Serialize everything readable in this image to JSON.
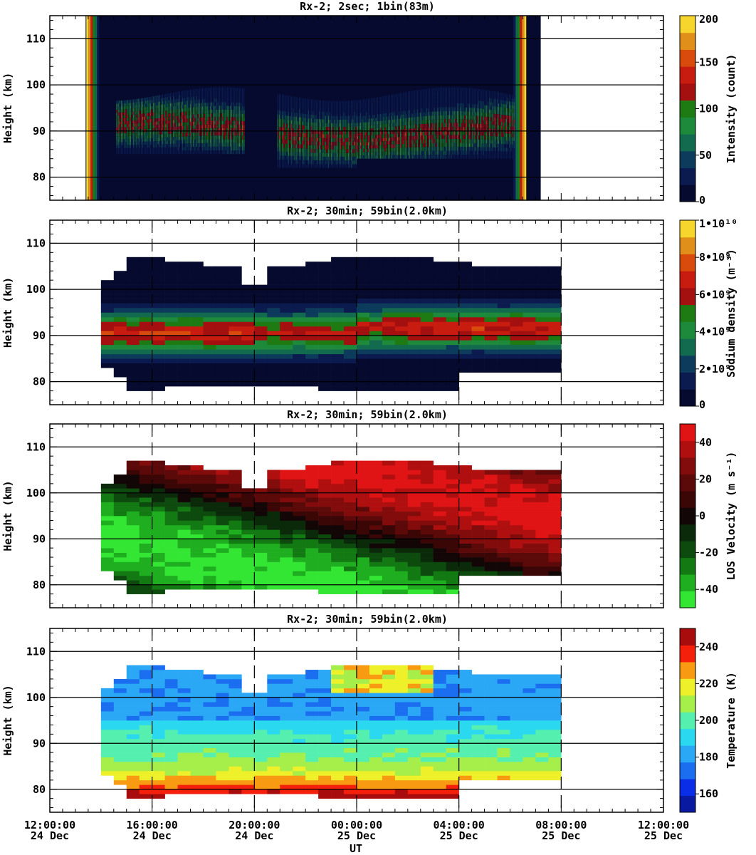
{
  "figure": {
    "x_axis_title": "UT",
    "x_ticks": [
      {
        "time": "12:00:00",
        "date": "24 Dec"
      },
      {
        "time": "16:00:00",
        "date": "24 Dec"
      },
      {
        "time": "20:00:00",
        "date": "24 Dec"
      },
      {
        "time": "00:00:00",
        "date": "25 Dec"
      },
      {
        "time": "04:00:00",
        "date": "25 Dec"
      },
      {
        "time": "08:00:00",
        "date": "25 Dec"
      },
      {
        "time": "12:00:00",
        "date": "25 Dec"
      }
    ],
    "y_ticks": [
      "80",
      "90",
      "100",
      "110"
    ]
  },
  "chart_data": [
    {
      "type": "heatmap",
      "title": "Rx-2;  2sec; 1bin(83m)",
      "xlabel": "UT",
      "ylabel": "Height (km)",
      "ylim": [
        75,
        115
      ],
      "x_range_hours_ut": [
        "24 Dec 12:00:00",
        "25 Dec 12:00:00"
      ],
      "data_extent": [
        "24 Dec 13:25",
        "25 Dec 09:10"
      ],
      "colorbar": {
        "label": "Intensity (count)",
        "ticks": [
          "0",
          "50",
          "100",
          "150",
          "200"
        ],
        "range": [
          0,
          200
        ],
        "colors": [
          "#050a2e",
          "#0b1a4f",
          "#0d3b5c",
          "#126b4f",
          "#1c8a3a",
          "#1e7a12",
          "#a40f0f",
          "#c81c10",
          "#d94b0d",
          "#e0901a",
          "#f6d52c"
        ]
      },
      "features": "bright bands at the start and end of the record; sodium layer between ~82 and ~98 km"
    },
    {
      "type": "heatmap",
      "title": "Rx-2; 30min; 59bin(2.0km)",
      "xlabel": "UT",
      "ylabel": "Height (km)",
      "ylim": [
        75,
        115
      ],
      "x_range_hours_ut": [
        "24 Dec 12:00:00",
        "25 Dec 12:00:00"
      ],
      "data_extent": [
        "24 Dec 14:00",
        "25 Dec 08:00"
      ],
      "colorbar": {
        "label": "Sodium density (m^-3)",
        "ticks": [
          "0",
          "2•10⁹",
          "4•10⁹",
          "6•10⁹",
          "8•10⁹",
          "1•10¹⁰"
        ],
        "range": [
          0,
          10000000000
        ],
        "colors": [
          "#050a2e",
          "#0b1a4f",
          "#0d3b5c",
          "#126b4f",
          "#1c8a3a",
          "#1e7a12",
          "#a40f0f",
          "#c81c10",
          "#d94b0d",
          "#e0901a",
          "#f6d52c"
        ]
      },
      "features": "layer peak near 90 km, max density ~6-7x10^9 m^-3"
    },
    {
      "type": "heatmap",
      "title": "Rx-2; 30min; 59bin(2.0km)",
      "xlabel": "UT",
      "ylabel": "Height (km)",
      "ylim": [
        75,
        115
      ],
      "x_range_hours_ut": [
        "24 Dec 12:00:00",
        "25 Dec 12:00:00"
      ],
      "data_extent": [
        "24 Dec 14:00",
        "25 Dec 08:00"
      ],
      "colorbar": {
        "label": "LOS Velocity (m s^-1)",
        "ticks": [
          "-40",
          "-20",
          "0",
          "20",
          "40"
        ],
        "range": [
          -50,
          50
        ],
        "colors": [
          "#33e633",
          "#1fae1f",
          "#137a13",
          "#0d4a0d",
          "#0a2a0a",
          "#120606",
          "#3a0606",
          "#5c0909",
          "#820c0c",
          "#b00f0f",
          "#e01414"
        ]
      },
      "features": "downward-progressing tilted phase fronts alternating red (positive) and green (negative)"
    },
    {
      "type": "heatmap",
      "title": "Rx-2; 30min; 59bin(2.0km)",
      "xlabel": "UT",
      "ylabel": "Height (km)",
      "ylim": [
        75,
        115
      ],
      "x_range_hours_ut": [
        "24 Dec 12:00:00",
        "25 Dec 12:00:00"
      ],
      "data_extent": [
        "24 Dec 14:00",
        "25 Dec 08:00"
      ],
      "colorbar": {
        "label": "Temperature (K)",
        "ticks": [
          "160",
          "180",
          "200",
          "220",
          "240"
        ],
        "range": [
          150,
          250
        ],
        "colors": [
          "#0a1aa0",
          "#0a2de8",
          "#1b6ef0",
          "#2aa8f5",
          "#2ad8f0",
          "#55f0b0",
          "#a6ee4a",
          "#eef02a",
          "#f89a12",
          "#f5200c",
          "#a80c0c"
        ]
      },
      "features": "cold 165-185 K above 95 km, warm 210-235 K near 80-83 km"
    }
  ]
}
